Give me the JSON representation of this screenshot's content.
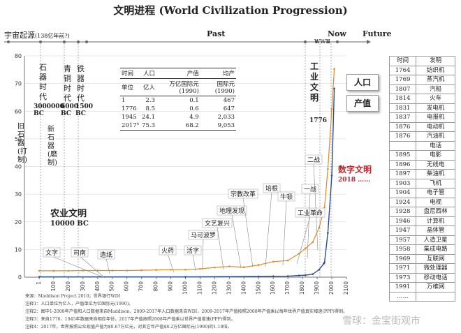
{
  "title": "文明进程 (World Civilization Progression)",
  "header": {
    "origin": "宇宙起源",
    "origin_note": "(138亿年前?)",
    "past": "Past",
    "now": "Now",
    "future": "Future",
    "wwii": "WWII"
  },
  "colors": {
    "population": "#e08a2c",
    "output": "#2a4f8f",
    "accent_red": "#c0272d",
    "axis": "#7a7a7a",
    "grid": "#d0d0d0"
  },
  "ages": {
    "stone": {
      "label": "石器时代",
      "date": "3000000",
      "unit": "BC"
    },
    "bronze": {
      "label": "青铜时代",
      "date": "6000",
      "unit": "BC"
    },
    "iron": {
      "label": "铁器时代",
      "date": "1500",
      "unit": "BC"
    },
    "paleo": "旧石器(打制)",
    "neo": "新石器(磨制)",
    "agri": {
      "label": "农业文明",
      "date": "10000 BC"
    },
    "industrial": {
      "label": "工业文明",
      "date": "1776"
    },
    "digital": {
      "label": "数字文明",
      "date": "2018 ……"
    }
  },
  "stats_table": {
    "headers": [
      "时间",
      "人口",
      "产值",
      "均产"
    ],
    "units": [
      "单位",
      "亿人",
      "万亿国际元 (1990)",
      "国际元 (1990)"
    ],
    "rows": [
      [
        "1",
        "2.3",
        "0.1",
        "467"
      ],
      [
        "1776",
        "8.5",
        "0.6",
        "647"
      ],
      [
        "1945",
        "24.1",
        "4.9",
        "2,033"
      ],
      [
        "2017⁴",
        "75.3",
        "68.2",
        "9,053"
      ]
    ]
  },
  "inventions": {
    "headers": [
      "时间",
      "发明"
    ],
    "rows": [
      [
        "1764",
        "纺织机"
      ],
      [
        "1769",
        "蒸汽机"
      ],
      [
        "1807",
        "汽船"
      ],
      [
        "1814",
        "火车"
      ],
      [
        "1831",
        "发电机"
      ],
      [
        "1837",
        "电报机"
      ],
      [
        "1876",
        "电动机"
      ],
      [
        "1876",
        "汽油机"
      ],
      [
        "",
        "电话"
      ],
      [
        "1895",
        "电影"
      ],
      [
        "1896",
        "无线电"
      ],
      [
        "1897",
        "柴油机"
      ],
      [
        "1903",
        "飞机"
      ],
      [
        "1904",
        "电子管"
      ],
      [
        "1924",
        "电视"
      ],
      [
        "1928",
        "盘尼西林"
      ],
      [
        "1946",
        "计算机"
      ],
      [
        "1947",
        "晶体管"
      ],
      [
        "1957",
        "人造卫星"
      ],
      [
        "1958",
        "集成电路"
      ],
      [
        "1969",
        "互联网"
      ],
      [
        "1971",
        "微处理器"
      ],
      [
        "1973",
        "移动电话"
      ],
      [
        "1991",
        "万维网"
      ],
      [
        "……",
        ""
      ]
    ]
  },
  "events": [
    "文字",
    "司南",
    "造纸",
    "火药",
    "活字",
    "马可波罗",
    "文艺复兴",
    "地理发现",
    "宗教改革",
    "培根",
    "牛顿",
    "工业革命",
    "一战",
    "二战"
  ],
  "series_labels": {
    "population": "人口",
    "output": "产值"
  },
  "footnotes": [
    "来源：Maddison Project 2010；世界银行WDI",
    "注释1：人口单位为亿人，产值单位为亿国际元(1990)。",
    "注释2：图中1-2008年产值和人口数据来自Maddison，2009-2017年人口数据来自WDI，2009-2017年产值按照2008年产值乘以每年世界产值真实增速(PPP)得到。",
    "注释3：来自1776、1945年数据来自相应年份，2017年产值按照2008年产值乘以世界产值增速(PPP)得到。",
    "注释4：2017年，世界按照公众现值产值为$0.67万亿元，对其它年产值$8.2万亿国际元(1990)的1.18倍。"
  ],
  "watermark": "雪球：金宝街观市",
  "chart_data": {
    "type": "line",
    "title": "文明进程 (World Civilization Progression)",
    "x_ticks": [
      1,
      100,
      200,
      300,
      400,
      500,
      600,
      700,
      800,
      900,
      1000,
      1100,
      1200,
      1300,
      1400,
      1500,
      1600,
      1700,
      1800,
      1900,
      2000,
      2100
    ],
    "y_ticks": [
      0,
      10,
      20,
      30,
      40,
      50,
      60,
      70,
      80
    ],
    "xlim": [
      -100,
      2100
    ],
    "ylim": [
      0,
      80
    ],
    "grid": true,
    "series": [
      {
        "name": "人口",
        "x": [
          1,
          100,
          200,
          300,
          400,
          500,
          600,
          700,
          800,
          900,
          1000,
          1100,
          1200,
          1300,
          1400,
          1500,
          1600,
          1700,
          1776,
          1820,
          1870,
          1913,
          1945,
          1950,
          1973,
          2000,
          2017
        ],
        "values": [
          2.3,
          2.3,
          2.3,
          2.4,
          2.4,
          2.4,
          2.4,
          2.5,
          2.6,
          2.7,
          2.7,
          3.0,
          3.5,
          3.9,
          3.6,
          4.4,
          5.6,
          6.0,
          8.5,
          10.4,
          12.7,
          17.9,
          24.1,
          25.2,
          39.1,
          60.7,
          75.3
        ]
      },
      {
        "name": "产值",
        "x": [
          1,
          1000,
          1500,
          1600,
          1700,
          1776,
          1820,
          1870,
          1913,
          1945,
          1950,
          1973,
          2000,
          2017
        ],
        "values": [
          0.1,
          0.1,
          0.25,
          0.33,
          0.37,
          0.6,
          0.7,
          1.1,
          2.7,
          4.9,
          5.3,
          16.0,
          36.7,
          68.2
        ]
      }
    ]
  }
}
